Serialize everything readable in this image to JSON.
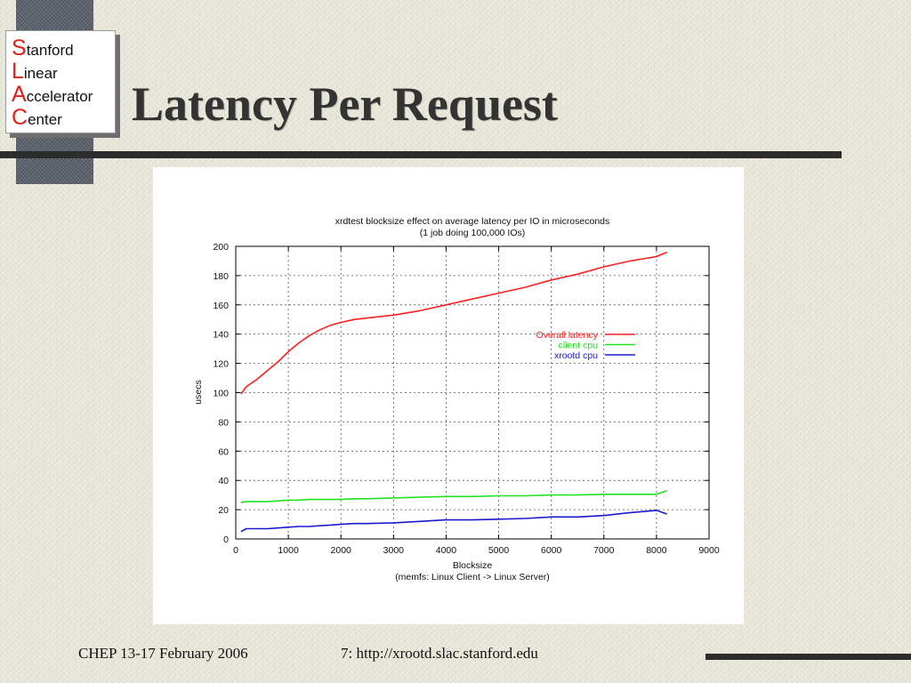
{
  "slide": {
    "title": "Latency Per Request",
    "colors": {
      "background": "#e7e6d8",
      "title": "#333333",
      "rule": "#2c2c2c",
      "logo_initial": "#e0201a",
      "deco_squares": "#5c636d"
    },
    "logo": {
      "lines": [
        {
          "initial": "S",
          "rest": "tanford"
        },
        {
          "initial": "L",
          "rest": "inear"
        },
        {
          "initial": "A",
          "rest": "ccelerator"
        },
        {
          "initial": "C",
          "rest": "enter"
        }
      ]
    },
    "footer": {
      "left": "CHEP 13-17 February 2006",
      "right": "7: http://xrootd.slac.stanford.edu"
    }
  },
  "chart_data": {
    "type": "line",
    "title": "xrdtest blocksize effect on average latency per IO in microseconds",
    "subtitle": "(1 job doing 100,000 IOs)",
    "xlabel": "Blocksize",
    "xlabel_note": "(memfs: Linux Client -> Linux Server)",
    "ylabel": "usecs",
    "xlim": [
      0,
      9000
    ],
    "ylim": [
      0,
      200
    ],
    "xticks": [
      0,
      1000,
      2000,
      3000,
      4000,
      5000,
      6000,
      7000,
      8000,
      9000
    ],
    "yticks": [
      0,
      20,
      40,
      60,
      80,
      100,
      120,
      140,
      160,
      180,
      200
    ],
    "grid": true,
    "legend": "inside right",
    "x": [
      100,
      200,
      400,
      600,
      800,
      1000,
      1200,
      1400,
      1600,
      1800,
      2000,
      2250,
      2500,
      3000,
      3500,
      4000,
      4500,
      5000,
      5500,
      6000,
      6500,
      7000,
      7500,
      8000,
      8200
    ],
    "series": [
      {
        "name": "Overall latency",
        "color": "#ff2020",
        "values": [
          99,
          104,
          109,
          115,
          121,
          128,
          134,
          139,
          143,
          146,
          148,
          150,
          151,
          153,
          156,
          160,
          164,
          168,
          172,
          177,
          181,
          186,
          190,
          193,
          196
        ]
      },
      {
        "name": "client cpu",
        "color": "#22e022",
        "values": [
          25,
          25.5,
          25.5,
          25.5,
          26,
          26.5,
          26.5,
          27,
          27,
          27,
          27,
          27.5,
          27.5,
          28,
          28.5,
          29,
          29,
          29.5,
          29.5,
          30,
          30,
          30.5,
          30.5,
          30.5,
          33
        ]
      },
      {
        "name": "xrootd cpu",
        "color": "#1a1ad0",
        "values": [
          5,
          7,
          7,
          7,
          7.5,
          8,
          8.5,
          8.5,
          9,
          9.5,
          10,
          10.5,
          10.5,
          11,
          12,
          13,
          13,
          13.5,
          14,
          15,
          15,
          16,
          18,
          19.5,
          17
        ]
      }
    ]
  }
}
